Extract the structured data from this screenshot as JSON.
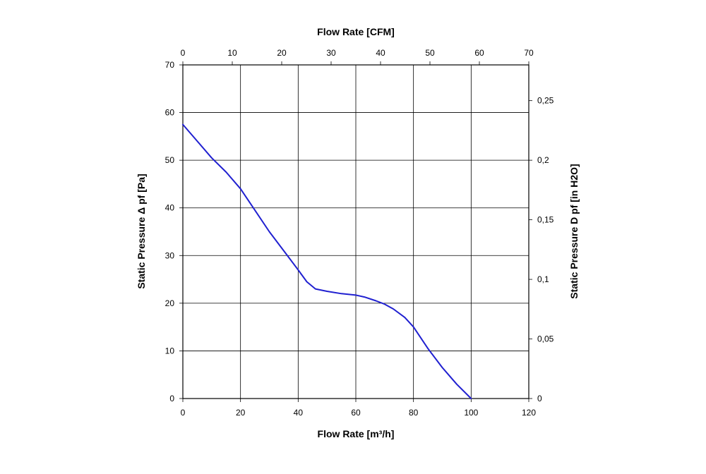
{
  "chart_data": {
    "type": "line",
    "title": "",
    "xlabel": "Flow Rate [m³/h]",
    "x2label": "Flow Rate [CFM]",
    "ylabel": "Static Pressure Δ pf [Pa]",
    "y2label": "Static Pressure D pf [in H2O]",
    "xlim": [
      0,
      120
    ],
    "ylim": [
      0,
      70
    ],
    "x2lim": [
      0,
      70
    ],
    "y2lim": [
      0,
      0.28
    ],
    "xticks": [
      "0",
      "20",
      "40",
      "60",
      "80",
      "100",
      "120"
    ],
    "yticks": [
      "0",
      "10",
      "20",
      "30",
      "40",
      "50",
      "60",
      "70"
    ],
    "x2ticks": [
      "0",
      "10",
      "20",
      "30",
      "40",
      "50",
      "60",
      "70"
    ],
    "y2ticks": [
      "0",
      "0,05",
      "0,1",
      "0,15",
      "0,2",
      "0,25"
    ],
    "y2tick_values": [
      0,
      0.05,
      0.1,
      0.15,
      0.2,
      0.25
    ],
    "grid": true,
    "line_color": "#2020d0",
    "series": [
      {
        "x": [
          0,
          5,
          10,
          15,
          20,
          25,
          30,
          35,
          40,
          43,
          46,
          50,
          55,
          60,
          63,
          67,
          70,
          73,
          77,
          80,
          85,
          90,
          95,
          100
        ],
        "y": [
          57.5,
          54,
          50.5,
          47.5,
          44,
          39.5,
          35,
          31,
          27,
          24.5,
          23,
          22.5,
          22,
          21.7,
          21.3,
          20.5,
          19.8,
          18.8,
          17,
          15,
          10.5,
          6.5,
          3,
          0
        ]
      }
    ]
  }
}
